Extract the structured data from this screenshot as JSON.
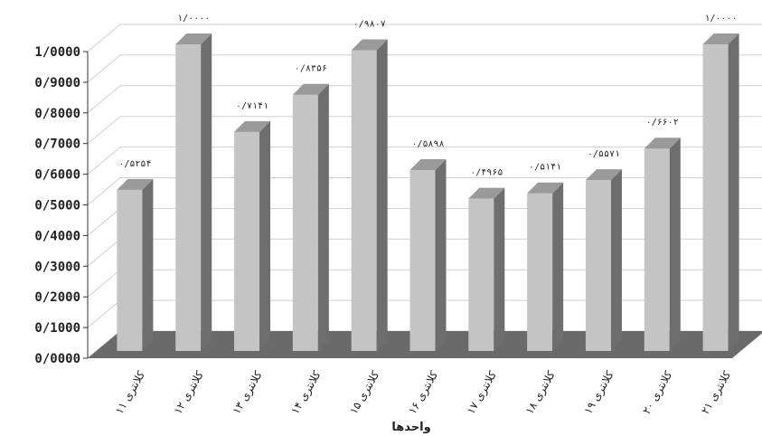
{
  "chart_data": {
    "type": "bar",
    "title": "",
    "xlabel": "واحدها",
    "ylabel": "",
    "ylim": [
      0,
      1
    ],
    "y_ticks": [
      "0/0000",
      "0/1000",
      "0/2000",
      "0/3000",
      "0/4000",
      "0/5000",
      "0/6000",
      "0/7000",
      "0/8000",
      "0/9000",
      "1/0000"
    ],
    "y_tick_values": [
      0,
      0.1,
      0.2,
      0.3,
      0.4,
      0.5,
      0.6,
      0.7,
      0.8,
      0.9,
      1.0
    ],
    "categories": [
      "کلانتری ۱۱",
      "کلانتری ۱۲",
      "کلانتری ۱۳",
      "کلانتری ۱۴",
      "کلانتری ۱۵",
      "کلانتری ۱۶",
      "کلانتری ۱۷",
      "کلانتری ۱۸",
      "کلانتری ۱۹",
      "کلانتری ۲۰",
      "کلانتری ۲۱"
    ],
    "values": [
      0.5254,
      1.0,
      0.7141,
      0.8356,
      0.9807,
      0.5898,
      0.4965,
      0.5141,
      0.5571,
      0.6602,
      1.0
    ],
    "data_labels": [
      "۰/۵۲۵۴",
      "۱/۰۰۰۰",
      "۰/۷۱۴۱",
      "۰/۸۳۵۶",
      "۰/۹۸۰۷",
      "۰/۵۸۹۸",
      "۰/۴۹۶۵",
      "۰/۵۱۴۱",
      "۰/۵۵۷۱",
      "۰/۶۶۰۲",
      "۱/۰۰۰۰"
    ],
    "grid": true,
    "legend": "none",
    "colors": {
      "bar_front": "#c4c4c4",
      "bar_side": "#6e6e6e",
      "bar_top": "#9a9a9a",
      "floor": "#6a6a6a",
      "wall_grid": "#cfcfcf"
    }
  }
}
